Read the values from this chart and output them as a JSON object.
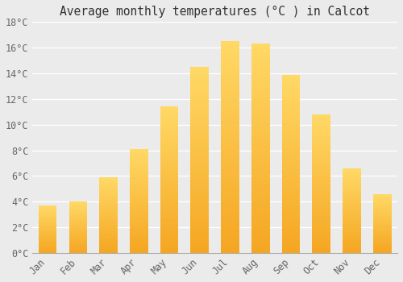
{
  "title": "Average monthly temperatures (°C ) in Calcot",
  "months": [
    "Jan",
    "Feb",
    "Mar",
    "Apr",
    "May",
    "Jun",
    "Jul",
    "Aug",
    "Sep",
    "Oct",
    "Nov",
    "Dec"
  ],
  "values": [
    3.7,
    4.0,
    5.9,
    8.1,
    11.4,
    14.5,
    16.5,
    16.3,
    13.9,
    10.8,
    6.6,
    4.6
  ],
  "bar_color_bottom": "#F5A623",
  "bar_color_top": "#FFD966",
  "ylim": [
    0,
    18
  ],
  "yticks": [
    0,
    2,
    4,
    6,
    8,
    10,
    12,
    14,
    16,
    18
  ],
  "ytick_labels": [
    "0°C",
    "2°C",
    "4°C",
    "6°C",
    "8°C",
    "10°C",
    "12°C",
    "14°C",
    "16°C",
    "18°C"
  ],
  "background_color": "#EBEBEB",
  "grid_color": "#FFFFFF",
  "title_fontsize": 10.5,
  "tick_fontsize": 8.5,
  "tick_color": "#666666",
  "font_family": "monospace",
  "bar_width": 0.6
}
